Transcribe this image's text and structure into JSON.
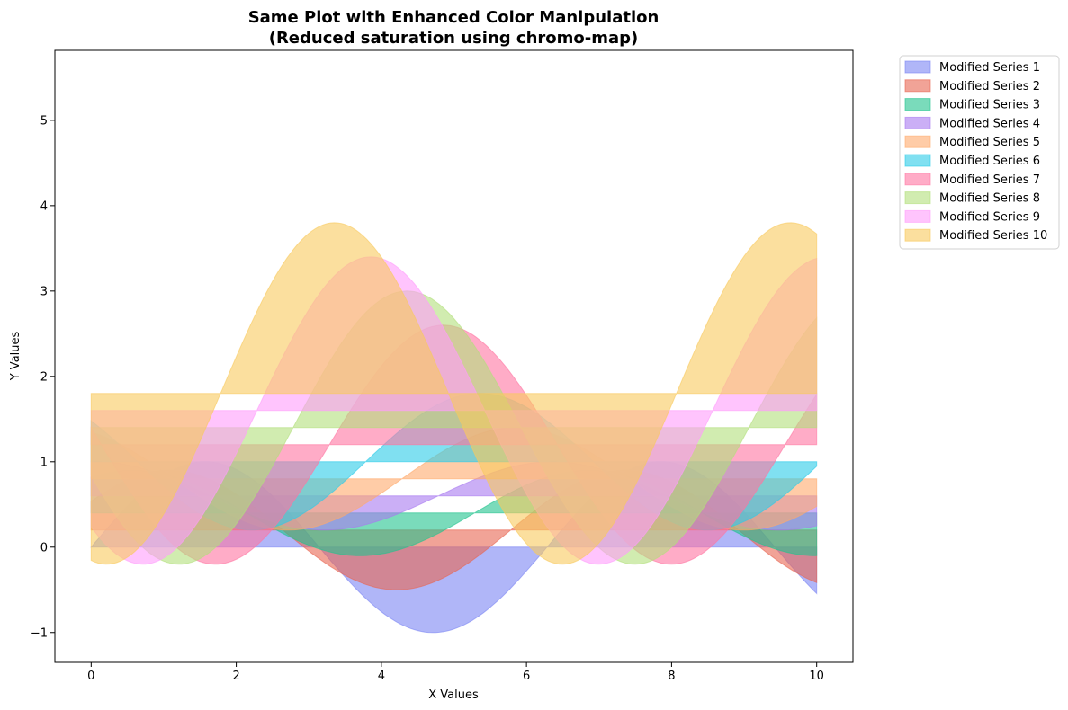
{
  "chart_data": {
    "type": "area",
    "title_line1": "Same Plot with Enhanced Color Manipulation",
    "title_line2": "(Reduced saturation using chromo-map)",
    "xlabel": "X Values",
    "ylabel": "Y Values",
    "xlim": [
      -0.5,
      10.5
    ],
    "ylim": [
      -1.35,
      5.82
    ],
    "xticks": [
      0,
      2,
      4,
      6,
      8,
      10
    ],
    "yticks": [
      -1,
      0,
      1,
      2,
      3,
      4,
      5
    ],
    "xtick_labels": [
      "0",
      "2",
      "4",
      "6",
      "8",
      "10"
    ],
    "ytick_labels": [
      "−1",
      "0",
      "1",
      "2",
      "3",
      "4",
      "5"
    ],
    "grid": false,
    "legend_position": "outside top-right",
    "fill_alpha": 0.6,
    "x_range": [
      0,
      10
    ],
    "series": [
      {
        "name": "Modified Series 1",
        "color": "#7b86f4",
        "baseline": 0.0,
        "amplitude": 1.0,
        "offset": 0.0,
        "phase": 0.0
      },
      {
        "name": "Modified Series 2",
        "color": "#e86552",
        "baseline": 0.2,
        "amplitude": 0.7,
        "offset": 0.2,
        "phase": 0.5
      },
      {
        "name": "Modified Series 3",
        "color": "#22c38e",
        "baseline": 0.4,
        "amplitude": 0.5,
        "offset": 0.4,
        "phase": 1.0
      },
      {
        "name": "Modified Series 4",
        "color": "#a97af0",
        "baseline": 0.6,
        "amplitude": 0.4,
        "offset": 0.6,
        "phase": 1.5
      },
      {
        "name": "Modified Series 5",
        "color": "#ffaa6c",
        "baseline": 0.8,
        "amplitude": 0.6,
        "offset": 0.8,
        "phase": 2.0
      },
      {
        "name": "Modified Series 6",
        "color": "#2ccbe8",
        "baseline": 1.0,
        "amplitude": 0.8,
        "offset": 1.0,
        "phase": 2.5
      },
      {
        "name": "Modified Series 7",
        "color": "#ff74a2",
        "baseline": 1.2,
        "amplitude": 1.4,
        "offset": 1.2,
        "phase": 3.0
      },
      {
        "name": "Modified Series 8",
        "color": "#b2e07c",
        "baseline": 1.4,
        "amplitude": 1.6,
        "offset": 1.4,
        "phase": 3.5
      },
      {
        "name": "Modified Series 9",
        "color": "#ff9cfc",
        "baseline": 1.6,
        "amplitude": 1.8,
        "offset": 1.6,
        "phase": 4.0
      },
      {
        "name": "Modified Series 10",
        "color": "#f9c95e",
        "baseline": 1.8,
        "amplitude": 2.0,
        "offset": 1.8,
        "phase": 4.5
      }
    ]
  }
}
